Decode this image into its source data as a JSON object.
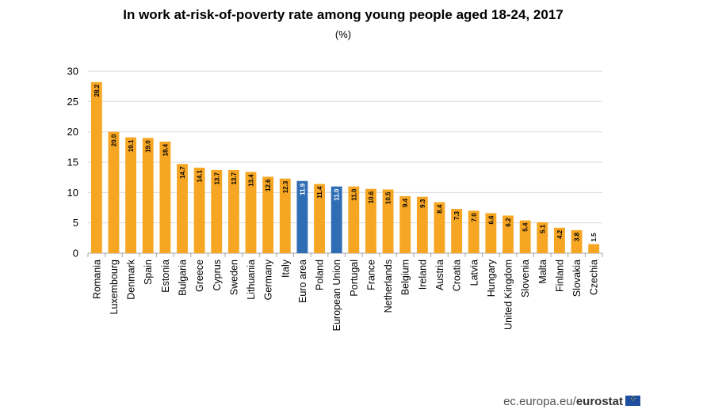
{
  "chart_data": {
    "type": "bar",
    "title": "In work at-risk-of-poverty rate among young people aged 18-24, 2017",
    "subtitle": "(%)",
    "categories": [
      "Romania",
      "Luxembourg",
      "Denmark",
      "Spain",
      "Estonia",
      "Bulgaria",
      "Greece",
      "Cyprus",
      "Sweden",
      "Lithuania",
      "Germany",
      "Italy",
      "Euro area",
      "Poland",
      "European Union",
      "Portugal",
      "France",
      "Netherlands",
      "Belgium",
      "Ireland",
      "Austria",
      "Croatia",
      "Latvia",
      "Hungary",
      "United Kingdom",
      "Slovenia",
      "Malta",
      "Finland",
      "Slovakia",
      "Czechia"
    ],
    "values": [
      28.2,
      20.0,
      19.1,
      19.0,
      18.4,
      14.7,
      14.1,
      13.7,
      13.7,
      13.4,
      12.6,
      12.3,
      11.9,
      11.4,
      11.0,
      11.0,
      10.6,
      10.5,
      9.4,
      9.3,
      8.4,
      7.3,
      7.0,
      6.6,
      6.2,
      5.4,
      5.1,
      4.2,
      3.8,
      1.5
    ],
    "data_labels": [
      "28.2",
      "20.0",
      "19.1",
      "19.0",
      "18.4",
      "14.7",
      "14.1",
      "13.7",
      "13.7",
      "13.4",
      "12.6",
      "12.3",
      "11.9",
      "11.4",
      "11.0",
      "11.0",
      "10.6",
      "10.5",
      "9.4",
      "9.3",
      "8.4",
      "7.3",
      "7.0",
      "6.6",
      "6.2",
      "5.4",
      "5.1",
      "4.2",
      "3.8",
      "1.5"
    ],
    "highlight": [
      "Euro area",
      "European Union"
    ],
    "colors": {
      "bar": "#f6a623",
      "highlight": "#2f6db5",
      "grid": "#d9d9d9",
      "axis": "#a6a6a6"
    },
    "ylim": [
      0,
      30
    ],
    "yticks": [
      "0",
      "5",
      "10",
      "15",
      "20",
      "25",
      "30"
    ],
    "grid": true,
    "xlabel": "",
    "ylabel": ""
  },
  "footer": {
    "site": "ec.europa.eu/",
    "brand": "eurostat"
  }
}
